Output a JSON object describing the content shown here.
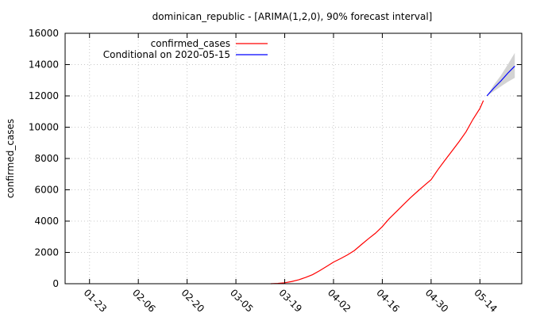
{
  "chart_data": {
    "type": "line",
    "title": "dominican_republic -  [ARIMA(1,2,0), 90% forecast interval]",
    "xlabel": "",
    "ylabel": "confirmed_cases",
    "x_range": [
      "2020-01-16",
      "2020-05-26"
    ],
    "ylim": [
      0,
      16000
    ],
    "y_ticks": [
      0,
      2000,
      4000,
      6000,
      8000,
      10000,
      12000,
      14000,
      16000
    ],
    "x_ticks": [
      {
        "date": "2020-01-23",
        "label": "01-23"
      },
      {
        "date": "2020-02-06",
        "label": "02-06"
      },
      {
        "date": "2020-02-20",
        "label": "02-20"
      },
      {
        "date": "2020-03-05",
        "label": "03-05"
      },
      {
        "date": "2020-03-19",
        "label": "03-19"
      },
      {
        "date": "2020-04-02",
        "label": "04-02"
      },
      {
        "date": "2020-04-16",
        "label": "04-16"
      },
      {
        "date": "2020-04-30",
        "label": "04-30"
      },
      {
        "date": "2020-05-14",
        "label": "05-14"
      }
    ],
    "grid": true,
    "legend_position": "top-left",
    "series": [
      {
        "name": "confirmed_cases",
        "color": "#ff0000",
        "points": [
          [
            "2020-03-15",
            0
          ],
          [
            "2020-03-17",
            20
          ],
          [
            "2020-03-19",
            60
          ],
          [
            "2020-03-21",
            140
          ],
          [
            "2020-03-23",
            250
          ],
          [
            "2020-03-25",
            400
          ],
          [
            "2020-03-27",
            580
          ],
          [
            "2020-03-29",
            830
          ],
          [
            "2020-03-31",
            1100
          ],
          [
            "2020-04-02",
            1380
          ],
          [
            "2020-04-04",
            1600
          ],
          [
            "2020-04-06",
            1840
          ],
          [
            "2020-04-08",
            2120
          ],
          [
            "2020-04-10",
            2500
          ],
          [
            "2020-04-12",
            2870
          ],
          [
            "2020-04-14",
            3220
          ],
          [
            "2020-04-16",
            3650
          ],
          [
            "2020-04-18",
            4160
          ],
          [
            "2020-04-20",
            4600
          ],
          [
            "2020-04-22",
            5040
          ],
          [
            "2020-04-24",
            5480
          ],
          [
            "2020-04-26",
            5880
          ],
          [
            "2020-04-28",
            6270
          ],
          [
            "2020-04-30",
            6650
          ],
          [
            "2020-05-02",
            7300
          ],
          [
            "2020-05-04",
            7900
          ],
          [
            "2020-05-06",
            8480
          ],
          [
            "2020-05-08",
            9070
          ],
          [
            "2020-05-10",
            9700
          ],
          [
            "2020-05-12",
            10500
          ],
          [
            "2020-05-14",
            11200
          ],
          [
            "2020-05-15",
            11700
          ]
        ]
      },
      {
        "name": "Conditional on 2020-05-15",
        "color": "#0000ff",
        "points": [
          [
            "2020-05-16",
            12000
          ],
          [
            "2020-05-18",
            12500
          ],
          [
            "2020-05-20",
            12950
          ],
          [
            "2020-05-22",
            13450
          ],
          [
            "2020-05-24",
            13900
          ]
        ]
      }
    ],
    "forecast_interval": {
      "color": "#d3d3d3",
      "lower": [
        [
          "2020-05-16",
          12000
        ],
        [
          "2020-05-18",
          12300
        ],
        [
          "2020-05-20",
          12600
        ],
        [
          "2020-05-22",
          12900
        ],
        [
          "2020-05-24",
          13150
        ]
      ],
      "upper": [
        [
          "2020-05-16",
          12000
        ],
        [
          "2020-05-18",
          12700
        ],
        [
          "2020-05-20",
          13300
        ],
        [
          "2020-05-22",
          14000
        ],
        [
          "2020-05-24",
          14750
        ]
      ]
    }
  }
}
